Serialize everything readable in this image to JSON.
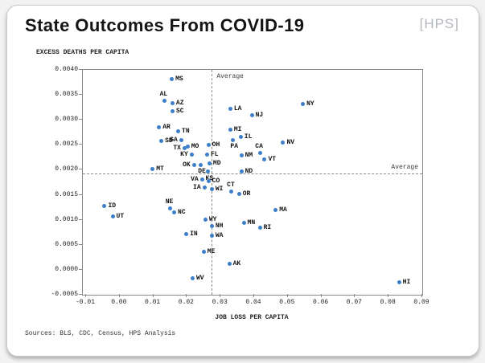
{
  "header": {
    "title": "State Outcomes From COVID-19",
    "logo": "[HPS]"
  },
  "footer": {
    "sources": "Sources: BLS, CDC, Census, HPS Analysis"
  },
  "chart_data": {
    "type": "scatter",
    "title": "State Outcomes From COVID-19",
    "xlabel": "JOB LOSS PER CAPITA",
    "ylabel": "EXCESS DEATHS PER CAPITA",
    "xlim": [
      -0.01,
      0.09
    ],
    "ylim": [
      -0.0005,
      0.004
    ],
    "x_ticks": [
      {
        "v": -0.01,
        "t": "-0.01"
      },
      {
        "v": 0.0,
        "t": "0.00"
      },
      {
        "v": 0.01,
        "t": "0.01"
      },
      {
        "v": 0.02,
        "t": "0.02"
      },
      {
        "v": 0.03,
        "t": "0.03"
      },
      {
        "v": 0.04,
        "t": "0.04"
      },
      {
        "v": 0.05,
        "t": "0.05"
      },
      {
        "v": 0.06,
        "t": "0.06"
      },
      {
        "v": 0.07,
        "t": "0.07"
      },
      {
        "v": 0.08,
        "t": "0.08"
      },
      {
        "v": 0.09,
        "t": "0.09"
      }
    ],
    "y_ticks": [
      {
        "v": 0.004,
        "t": "0.0040"
      },
      {
        "v": 0.0035,
        "t": "0.0035"
      },
      {
        "v": 0.003,
        "t": "0.0030"
      },
      {
        "v": 0.0025,
        "t": "0.0025"
      },
      {
        "v": 0.002,
        "t": "0.0020"
      },
      {
        "v": 0.0015,
        "t": "0.0015"
      },
      {
        "v": 0.001,
        "t": "0.0010"
      },
      {
        "v": 0.0005,
        "t": "0.0005"
      },
      {
        "v": 0.0,
        "t": "0.0000"
      },
      {
        "v": -0.0005,
        "t": "-0.0005"
      }
    ],
    "average_label": "Average",
    "avg_x": 0.0274,
    "avg_y": 0.00193,
    "point_color": "#3d7ecb",
    "grid": false,
    "points": [
      {
        "state": "MS",
        "x": 0.0155,
        "y": 0.00381,
        "label_pos": "right"
      },
      {
        "state": "AL",
        "x": 0.0133,
        "y": 0.00338,
        "label_pos": "above"
      },
      {
        "state": "AZ",
        "x": 0.0157,
        "y": 0.00333,
        "label_pos": "right"
      },
      {
        "state": "SC",
        "x": 0.0157,
        "y": 0.00317,
        "label_pos": "right"
      },
      {
        "state": "AR",
        "x": 0.0117,
        "y": 0.00285,
        "label_pos": "right"
      },
      {
        "state": "TN",
        "x": 0.0174,
        "y": 0.00277,
        "label_pos": "right"
      },
      {
        "state": "SD",
        "x": 0.0124,
        "y": 0.00258,
        "label_pos": "right"
      },
      {
        "state": "GA",
        "x": 0.0183,
        "y": 0.0026,
        "label_pos": "left"
      },
      {
        "state": "TX",
        "x": 0.0193,
        "y": 0.00244,
        "label_pos": "left"
      },
      {
        "state": "MO",
        "x": 0.0202,
        "y": 0.00247,
        "label_pos": "right"
      },
      {
        "state": "OH",
        "x": 0.0264,
        "y": 0.00249,
        "label_pos": "right"
      },
      {
        "state": "KY",
        "x": 0.0214,
        "y": 0.00231,
        "label_pos": "left"
      },
      {
        "state": "FL",
        "x": 0.026,
        "y": 0.00231,
        "label_pos": "right"
      },
      {
        "state": "MT",
        "x": 0.0098,
        "y": 0.00202,
        "label_pos": "right"
      },
      {
        "state": "OK",
        "x": 0.0221,
        "y": 0.0021,
        "label_pos": "left"
      },
      {
        "state": "MD",
        "x": 0.0267,
        "y": 0.00212,
        "label_pos": "right"
      },
      {
        "state": "DE",
        "x": 0.024,
        "y": 0.0021,
        "label_pos": "below"
      },
      {
        "state": "KS",
        "x": 0.0262,
        "y": 0.00196,
        "label_pos": "below"
      },
      {
        "state": "VA",
        "x": 0.0245,
        "y": 0.0018,
        "label_pos": "left"
      },
      {
        "state": "CO",
        "x": 0.0264,
        "y": 0.00177,
        "label_pos": "right"
      },
      {
        "state": "IA",
        "x": 0.0252,
        "y": 0.00164,
        "label_pos": "left"
      },
      {
        "state": "WI",
        "x": 0.0274,
        "y": 0.00162,
        "label_pos": "right"
      },
      {
        "state": "CT",
        "x": 0.0333,
        "y": 0.00156,
        "label_pos": "above"
      },
      {
        "state": "OR",
        "x": 0.0355,
        "y": 0.00151,
        "label_pos": "right"
      },
      {
        "state": "LA",
        "x": 0.0329,
        "y": 0.00322,
        "label_pos": "right"
      },
      {
        "state": "NJ",
        "x": 0.0393,
        "y": 0.00309,
        "label_pos": "right"
      },
      {
        "state": "NY",
        "x": 0.0545,
        "y": 0.00331,
        "label_pos": "right"
      },
      {
        "state": "MI",
        "x": 0.0329,
        "y": 0.0028,
        "label_pos": "right"
      },
      {
        "state": "IL",
        "x": 0.036,
        "y": 0.00266,
        "label_pos": "right"
      },
      {
        "state": "PA",
        "x": 0.0336,
        "y": 0.0026,
        "label_pos": "below"
      },
      {
        "state": "NV",
        "x": 0.0486,
        "y": 0.00255,
        "label_pos": "right"
      },
      {
        "state": "CA",
        "x": 0.0417,
        "y": 0.00233,
        "label_pos": "above"
      },
      {
        "state": "NM",
        "x": 0.0362,
        "y": 0.00229,
        "label_pos": "right"
      },
      {
        "state": "VT",
        "x": 0.0431,
        "y": 0.00221,
        "label_pos": "right"
      },
      {
        "state": "ND",
        "x": 0.0362,
        "y": 0.00196,
        "label_pos": "right"
      },
      {
        "state": "ID",
        "x": -0.0045,
        "y": 0.00127,
        "label_pos": "right"
      },
      {
        "state": "UT",
        "x": -0.0021,
        "y": 0.00106,
        "label_pos": "right"
      },
      {
        "state": "NE",
        "x": 0.015,
        "y": 0.00122,
        "label_pos": "above"
      },
      {
        "state": "NC",
        "x": 0.0162,
        "y": 0.00114,
        "label_pos": "right"
      },
      {
        "state": "MN",
        "x": 0.0369,
        "y": 0.00094,
        "label_pos": "right"
      },
      {
        "state": "RI",
        "x": 0.0417,
        "y": 0.00084,
        "label_pos": "right"
      },
      {
        "state": "MA",
        "x": 0.0464,
        "y": 0.00119,
        "label_pos": "right"
      },
      {
        "state": "WY",
        "x": 0.0255,
        "y": 0.001,
        "label_pos": "right"
      },
      {
        "state": "NH",
        "x": 0.0274,
        "y": 0.00087,
        "label_pos": "right"
      },
      {
        "state": "IN",
        "x": 0.0198,
        "y": 0.00071,
        "label_pos": "right"
      },
      {
        "state": "WA",
        "x": 0.0274,
        "y": 0.00068,
        "label_pos": "right"
      },
      {
        "state": "ME",
        "x": 0.025,
        "y": 0.00036,
        "label_pos": "right"
      },
      {
        "state": "AK",
        "x": 0.0326,
        "y": 0.00012,
        "label_pos": "right"
      },
      {
        "state": "WV",
        "x": 0.0217,
        "y": -0.00017,
        "label_pos": "right"
      },
      {
        "state": "HI",
        "x": 0.0831,
        "y": -0.00025,
        "label_pos": "right"
      }
    ]
  }
}
